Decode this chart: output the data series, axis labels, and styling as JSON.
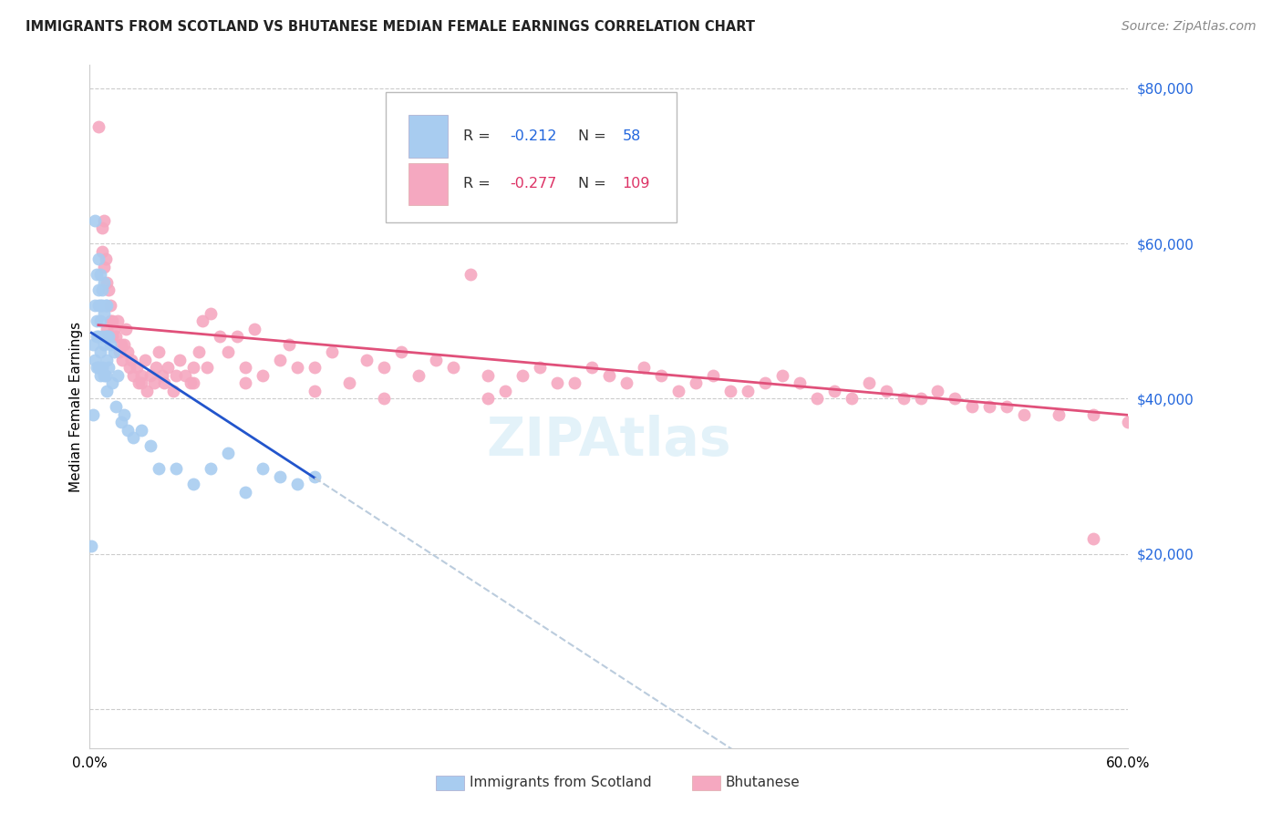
{
  "title": "IMMIGRANTS FROM SCOTLAND VS BHUTANESE MEDIAN FEMALE EARNINGS CORRELATION CHART",
  "source": "Source: ZipAtlas.com",
  "ylabel": "Median Female Earnings",
  "y_ticks": [
    0,
    20000,
    40000,
    60000,
    80000
  ],
  "y_tick_labels": [
    "",
    "$20,000",
    "$40,000",
    "$60,000",
    "$80,000"
  ],
  "xmin": 0.0,
  "xmax": 0.6,
  "ymin": -5000,
  "ymax": 83000,
  "scotland_color": "#a8ccf0",
  "bhutanese_color": "#f5a8c0",
  "scotland_line_color": "#2255cc",
  "bhutanese_line_color": "#e0507a",
  "dashed_line_color": "#bbccdd",
  "scotland_points_x": [
    0.001,
    0.002,
    0.002,
    0.003,
    0.003,
    0.003,
    0.004,
    0.004,
    0.004,
    0.004,
    0.005,
    0.005,
    0.005,
    0.005,
    0.005,
    0.006,
    0.006,
    0.006,
    0.006,
    0.006,
    0.007,
    0.007,
    0.007,
    0.007,
    0.008,
    0.008,
    0.008,
    0.008,
    0.009,
    0.009,
    0.009,
    0.01,
    0.01,
    0.01,
    0.01,
    0.011,
    0.011,
    0.012,
    0.013,
    0.014,
    0.015,
    0.016,
    0.018,
    0.02,
    0.022,
    0.025,
    0.03,
    0.035,
    0.04,
    0.05,
    0.06,
    0.07,
    0.08,
    0.09,
    0.1,
    0.11,
    0.12,
    0.13
  ],
  "scotland_points_y": [
    21000,
    47000,
    38000,
    63000,
    52000,
    45000,
    56000,
    50000,
    48000,
    44000,
    58000,
    54000,
    52000,
    48000,
    44000,
    56000,
    52000,
    50000,
    46000,
    43000,
    54000,
    52000,
    48000,
    44000,
    55000,
    51000,
    47000,
    43000,
    52000,
    48000,
    43000,
    52000,
    48000,
    45000,
    41000,
    48000,
    44000,
    47000,
    42000,
    46000,
    39000,
    43000,
    37000,
    38000,
    36000,
    35000,
    36000,
    34000,
    31000,
    31000,
    29000,
    31000,
    33000,
    28000,
    31000,
    30000,
    29000,
    30000
  ],
  "bhutanese_points_x": [
    0.005,
    0.007,
    0.007,
    0.008,
    0.008,
    0.009,
    0.01,
    0.01,
    0.011,
    0.011,
    0.012,
    0.012,
    0.013,
    0.013,
    0.014,
    0.015,
    0.016,
    0.017,
    0.018,
    0.019,
    0.02,
    0.021,
    0.022,
    0.023,
    0.024,
    0.025,
    0.027,
    0.028,
    0.03,
    0.032,
    0.033,
    0.035,
    0.037,
    0.038,
    0.04,
    0.042,
    0.043,
    0.045,
    0.048,
    0.05,
    0.052,
    0.055,
    0.058,
    0.06,
    0.063,
    0.065,
    0.068,
    0.07,
    0.075,
    0.08,
    0.085,
    0.09,
    0.095,
    0.1,
    0.11,
    0.115,
    0.12,
    0.13,
    0.14,
    0.15,
    0.16,
    0.17,
    0.18,
    0.19,
    0.2,
    0.21,
    0.22,
    0.23,
    0.24,
    0.25,
    0.26,
    0.27,
    0.28,
    0.29,
    0.3,
    0.31,
    0.32,
    0.33,
    0.34,
    0.35,
    0.36,
    0.37,
    0.38,
    0.39,
    0.4,
    0.41,
    0.42,
    0.43,
    0.44,
    0.45,
    0.46,
    0.47,
    0.48,
    0.49,
    0.5,
    0.51,
    0.52,
    0.53,
    0.54,
    0.56,
    0.58,
    0.6,
    0.03,
    0.06,
    0.09,
    0.13,
    0.17,
    0.23,
    0.58
  ],
  "bhutanese_points_y": [
    75000,
    62000,
    59000,
    57000,
    63000,
    58000,
    55000,
    49000,
    54000,
    48000,
    52000,
    50000,
    50000,
    48000,
    49000,
    48000,
    50000,
    46000,
    47000,
    45000,
    47000,
    49000,
    46000,
    44000,
    45000,
    43000,
    44000,
    42000,
    43000,
    45000,
    41000,
    43000,
    42000,
    44000,
    46000,
    43000,
    42000,
    44000,
    41000,
    43000,
    45000,
    43000,
    42000,
    44000,
    46000,
    50000,
    44000,
    51000,
    48000,
    46000,
    48000,
    44000,
    49000,
    43000,
    45000,
    47000,
    44000,
    44000,
    46000,
    42000,
    45000,
    44000,
    46000,
    43000,
    45000,
    44000,
    56000,
    43000,
    41000,
    43000,
    44000,
    42000,
    42000,
    44000,
    43000,
    42000,
    44000,
    43000,
    41000,
    42000,
    43000,
    41000,
    41000,
    42000,
    43000,
    42000,
    40000,
    41000,
    40000,
    42000,
    41000,
    40000,
    40000,
    41000,
    40000,
    39000,
    39000,
    39000,
    38000,
    38000,
    38000,
    37000,
    42000,
    42000,
    42000,
    41000,
    40000,
    40000,
    22000
  ],
  "scotland_trend_x0": 0.001,
  "scotland_trend_x_solid_end": 0.13,
  "scotland_trend_y0": 48500,
  "scotland_trend_slope": -145000,
  "bhutanese_trend_x0": 0.005,
  "bhutanese_trend_x_end": 0.6,
  "bhutanese_trend_y0": 49500,
  "bhutanese_trend_slope": -19500
}
